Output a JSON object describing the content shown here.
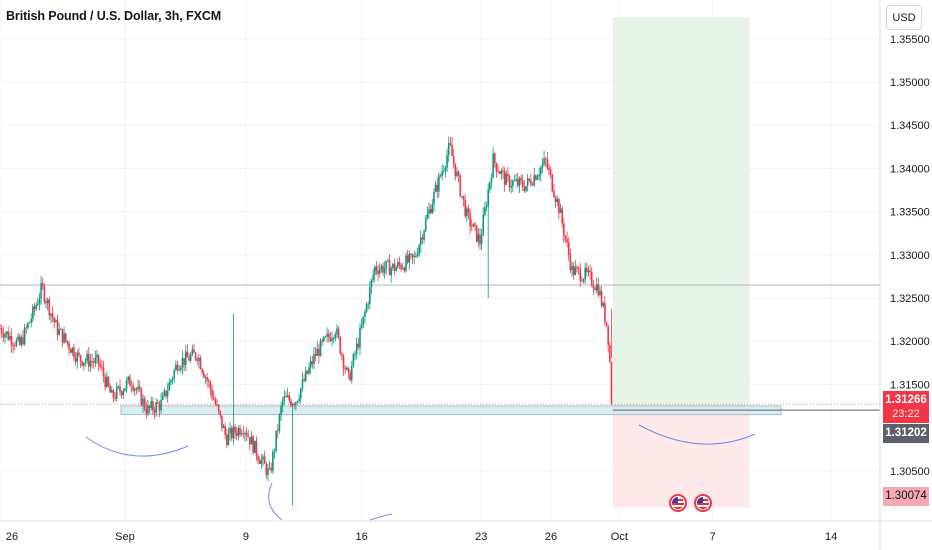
{
  "header": {
    "title": "British Pound / U.S. Dollar, 3h, FXCM"
  },
  "currency_button": {
    "label": "USD"
  },
  "price_tags": {
    "last": "1.31266",
    "countdown": "23:22",
    "entry": "1.31202",
    "stop": "1.30074"
  },
  "events": {
    "icons": [
      "us-flag-icon",
      "us-flag-icon"
    ]
  },
  "colors": {
    "up": "#089981",
    "down": "#f23645",
    "target_zone": "#e6f4e8",
    "stop_zone": "#fde8ea",
    "support_zone": "#d2ecef",
    "curve": "#6f8ee8",
    "level_line": "#b2b5be"
  },
  "chart_data": {
    "type": "candlestick",
    "title": "British Pound / U.S. Dollar, 3h, FXCM",
    "xlabel": "",
    "ylabel": "",
    "ylim": [
      1.2993,
      1.3595
    ],
    "y_ticks": [
      1.355,
      1.35,
      1.345,
      1.34,
      1.335,
      1.33,
      1.325,
      1.32,
      1.315,
      1.305
    ],
    "y_tick_labels": [
      "1.35500",
      "1.35000",
      "1.34500",
      "1.34000",
      "1.33500",
      "1.33000",
      "1.32500",
      "1.32000",
      "1.31500",
      "1.30500"
    ],
    "x_tick_labels": [
      "26",
      "Sep",
      "9",
      "16",
      "23",
      "26",
      "Oct",
      "7",
      "14"
    ],
    "close_path": [
      {
        "d": 0,
        "c": 1.3215
      },
      {
        "d": 1.5,
        "c": 1.3195
      },
      {
        "d": 2.5,
        "c": 1.3232
      },
      {
        "d": 3.2,
        "c": 1.3262
      },
      {
        "d": 4.3,
        "c": 1.3215
      },
      {
        "d": 6,
        "c": 1.318
      },
      {
        "d": 7.5,
        "c": 1.3175
      },
      {
        "d": 8.5,
        "c": 1.3135
      },
      {
        "d": 10,
        "c": 1.3155
      },
      {
        "d": 11.2,
        "c": 1.312
      },
      {
        "d": 12.3,
        "c": 1.3128
      },
      {
        "d": 13.5,
        "c": 1.3175
      },
      {
        "d": 15,
        "c": 1.3185
      },
      {
        "d": 16,
        "c": 1.3145
      },
      {
        "d": 17.2,
        "c": 1.3088
      },
      {
        "d": 18.5,
        "c": 1.3102
      },
      {
        "d": 19.5,
        "c": 1.3072
      },
      {
        "d": 20.5,
        "c": 1.3045
      },
      {
        "d": 21.5,
        "c": 1.3132
      },
      {
        "d": 22.5,
        "c": 1.3132
      },
      {
        "d": 24,
        "c": 1.3185
      },
      {
        "d": 25.5,
        "c": 1.3215
      },
      {
        "d": 26.5,
        "c": 1.3155
      },
      {
        "d": 27.5,
        "c": 1.3215
      },
      {
        "d": 28.5,
        "c": 1.3285
      },
      {
        "d": 30,
        "c": 1.3285
      },
      {
        "d": 31.5,
        "c": 1.3295
      },
      {
        "d": 32.5,
        "c": 1.3345
      },
      {
        "d": 34.2,
        "c": 1.3425
      },
      {
        "d": 35.5,
        "c": 1.3345
      },
      {
        "d": 36.5,
        "c": 1.3315
      },
      {
        "d": 37.5,
        "c": 1.341
      },
      {
        "d": 38.5,
        "c": 1.3385
      },
      {
        "d": 40,
        "c": 1.338
      },
      {
        "d": 41.5,
        "c": 1.3408
      },
      {
        "d": 42.5,
        "c": 1.3355
      },
      {
        "d": 43.5,
        "c": 1.3282
      },
      {
        "d": 44.7,
        "c": 1.3275
      },
      {
        "d": 45.5,
        "c": 1.3262
      },
      {
        "d": 46.2,
        "c": 1.3215
      },
      {
        "d": 46.6,
        "c": 1.3126
      }
    ],
    "last_price": 1.31266,
    "support_zone": [
      1.3115,
      1.3125
    ],
    "horizontal_line": 1.3265,
    "position": {
      "entry": 1.31202,
      "target": 1.3575,
      "stop": 1.30074,
      "start_day": 46.6,
      "end_day": 57
    }
  }
}
